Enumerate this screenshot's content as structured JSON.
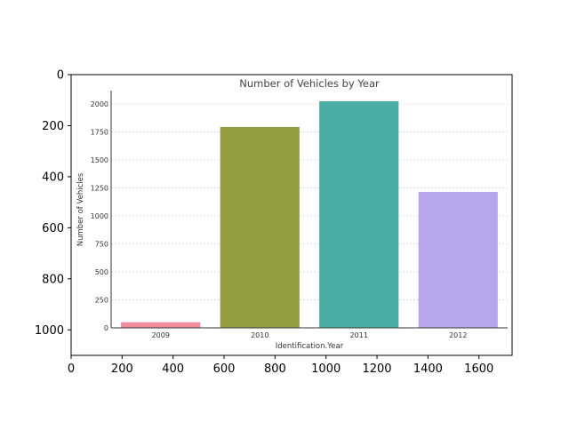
{
  "outer_axes": {
    "x_ticks": [
      "0",
      "200",
      "400",
      "600",
      "800",
      "1000",
      "1200",
      "1400",
      "1600"
    ],
    "x_tick_values": [
      0,
      200,
      400,
      600,
      800,
      1000,
      1200,
      1400,
      1600
    ],
    "y_ticks": [
      "0",
      "200",
      "400",
      "600",
      "800",
      "1000"
    ],
    "y_tick_values": [
      0,
      200,
      400,
      600,
      800,
      1000
    ],
    "xlim": [
      0,
      1730
    ],
    "ylim": [
      1100,
      0
    ]
  },
  "chart_data": {
    "type": "bar",
    "title": "Number of Vehicles by Year",
    "xlabel": "Identification.Year",
    "ylabel": "Number of Vehicles",
    "categories": [
      "2009",
      "2010",
      "2011",
      "2012"
    ],
    "values": [
      50,
      1795,
      2025,
      1215
    ],
    "colors": [
      "#f08c9c",
      "#949c42",
      "#4aaca3",
      "#b7a6ec"
    ],
    "y_ticks": [
      "0",
      "250",
      "500",
      "750",
      "1000",
      "1250",
      "1500",
      "1750",
      "2000"
    ],
    "y_tick_values": [
      0,
      250,
      500,
      750,
      1000,
      1250,
      1500,
      1750,
      2000
    ],
    "ylim": [
      0,
      2120
    ],
    "grid": "horizontal dashed",
    "legend": "none"
  }
}
